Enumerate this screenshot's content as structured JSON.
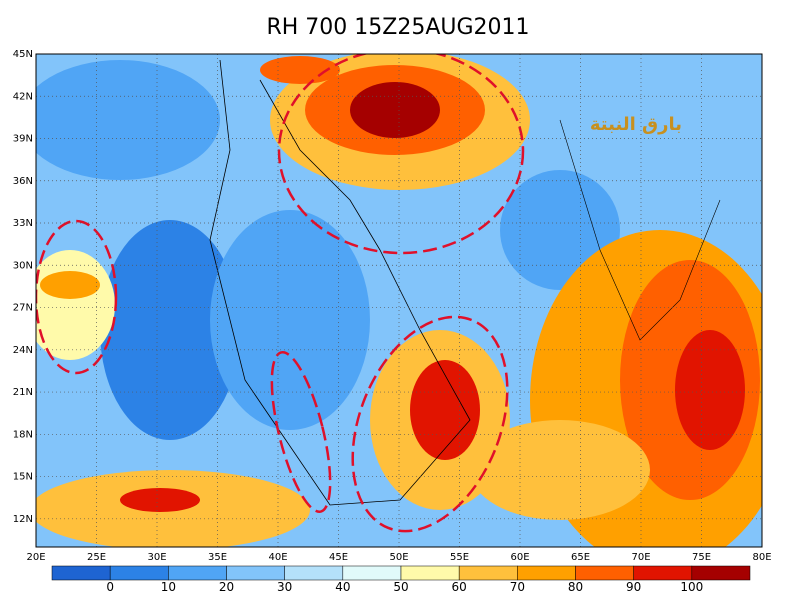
{
  "title": "RH 700 15Z25AUG2011",
  "map": {
    "lon_range": [
      20,
      80
    ],
    "lat_range": [
      10,
      45
    ],
    "lon_ticks": [
      {
        "value": 20,
        "label": "20E"
      },
      {
        "value": 25,
        "label": "25E"
      },
      {
        "value": 30,
        "label": "30E"
      },
      {
        "value": 35,
        "label": "35E"
      },
      {
        "value": 40,
        "label": "40E"
      },
      {
        "value": 45,
        "label": "45E"
      },
      {
        "value": 50,
        "label": "50E"
      },
      {
        "value": 55,
        "label": "55E"
      },
      {
        "value": 60,
        "label": "60E"
      },
      {
        "value": 65,
        "label": "65E"
      },
      {
        "value": 70,
        "label": "70E"
      },
      {
        "value": 75,
        "label": "75E"
      },
      {
        "value": 80,
        "label": "80E"
      }
    ],
    "lat_ticks": [
      {
        "value": 12,
        "label": "12N"
      },
      {
        "value": 15,
        "label": "15N"
      },
      {
        "value": 18,
        "label": "18N"
      },
      {
        "value": 21,
        "label": "21N"
      },
      {
        "value": 24,
        "label": "24N"
      },
      {
        "value": 27,
        "label": "27N"
      },
      {
        "value": 30,
        "label": "30N"
      },
      {
        "value": 33,
        "label": "33N"
      },
      {
        "value": 36,
        "label": "36N"
      },
      {
        "value": 39,
        "label": "39N"
      },
      {
        "value": 42,
        "label": "42N"
      },
      {
        "value": 45,
        "label": "45N"
      }
    ]
  },
  "colorbar": {
    "colors": [
      "#1e64d2",
      "#2c82e6",
      "#50a5f5",
      "#82c4fa",
      "#b4e1fa",
      "#e1fafa",
      "#fffaaa",
      "#ffc03c",
      "#ffa000",
      "#ff6000",
      "#e11400",
      "#a50000"
    ],
    "levels": [
      0,
      10,
      20,
      30,
      40,
      50,
      60,
      70,
      80,
      90,
      100
    ]
  },
  "watermark": "بارق النبتة"
}
